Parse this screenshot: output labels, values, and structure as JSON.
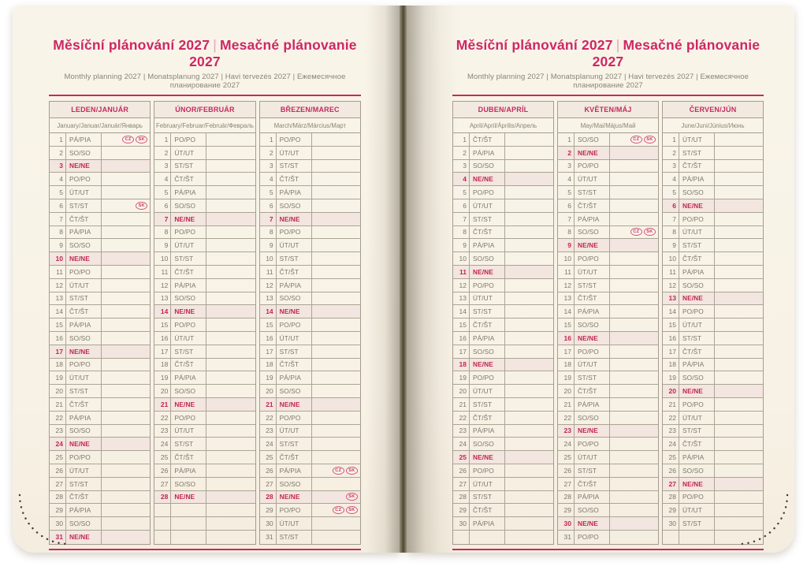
{
  "page_header": {
    "title_czech": "Měsíční plánování 2027",
    "title_divider": "|",
    "title_slovak": "Mesačné plánovanie 2027",
    "subtitle": "Monthly planning 2027 | Monatsplanung 2027 | Havi tervezés 2027 | Ежемесячное планирование 2027"
  },
  "colors": {
    "accent_pink": "#c8285e",
    "title_magenta": "#ce2765",
    "sunday_red": "#c02750",
    "badge_red": "#c73560",
    "paper_cream": "#f8f2e6",
    "grid_gray": "#aba595",
    "text_gray": "#7c766b",
    "month_header_bg": "#f2e9e0",
    "sunday_row_bg": "#f3e5df"
  },
  "holiday_badges_legend": [
    "CZ",
    "SK"
  ],
  "left_page": {
    "months": [
      {
        "name": "LEDEN/JANUÁR",
        "languages": "January/Januar/Január/Январь",
        "days": [
          {
            "n": 1,
            "d": "PÁ/PIA",
            "b": [
              "CZ",
              "SK"
            ]
          },
          {
            "n": 2,
            "d": "SO/SO"
          },
          {
            "n": 3,
            "d": "NE/NE"
          },
          {
            "n": 4,
            "d": "PO/PO"
          },
          {
            "n": 5,
            "d": "ÚT/UT"
          },
          {
            "n": 6,
            "d": "ST/ST",
            "b": [
              "SK"
            ]
          },
          {
            "n": 7,
            "d": "ČT/ŠT"
          },
          {
            "n": 8,
            "d": "PÁ/PIA"
          },
          {
            "n": 9,
            "d": "SO/SO"
          },
          {
            "n": 10,
            "d": "NE/NE"
          },
          {
            "n": 11,
            "d": "PO/PO"
          },
          {
            "n": 12,
            "d": "ÚT/UT"
          },
          {
            "n": 13,
            "d": "ST/ST"
          },
          {
            "n": 14,
            "d": "ČT/ŠT"
          },
          {
            "n": 15,
            "d": "PÁ/PIA"
          },
          {
            "n": 16,
            "d": "SO/SO"
          },
          {
            "n": 17,
            "d": "NE/NE"
          },
          {
            "n": 18,
            "d": "PO/PO"
          },
          {
            "n": 19,
            "d": "ÚT/UT"
          },
          {
            "n": 20,
            "d": "ST/ST"
          },
          {
            "n": 21,
            "d": "ČT/ŠT"
          },
          {
            "n": 22,
            "d": "PÁ/PIA"
          },
          {
            "n": 23,
            "d": "SO/SO"
          },
          {
            "n": 24,
            "d": "NE/NE"
          },
          {
            "n": 25,
            "d": "PO/PO"
          },
          {
            "n": 26,
            "d": "ÚT/UT"
          },
          {
            "n": 27,
            "d": "ST/ST"
          },
          {
            "n": 28,
            "d": "ČT/ŠT"
          },
          {
            "n": 29,
            "d": "PÁ/PIA"
          },
          {
            "n": 30,
            "d": "SO/SO"
          },
          {
            "n": 31,
            "d": "NE/NE"
          }
        ]
      },
      {
        "name": "ÚNOR/FEBRUÁR",
        "languages": "February/Februar/Február/Февраль",
        "days": [
          {
            "n": 1,
            "d": "PO/PO"
          },
          {
            "n": 2,
            "d": "ÚT/UT"
          },
          {
            "n": 3,
            "d": "ST/ST"
          },
          {
            "n": 4,
            "d": "ČT/ŠT"
          },
          {
            "n": 5,
            "d": "PÁ/PIA"
          },
          {
            "n": 6,
            "d": "SO/SO"
          },
          {
            "n": 7,
            "d": "NE/NE"
          },
          {
            "n": 8,
            "d": "PO/PO"
          },
          {
            "n": 9,
            "d": "ÚT/UT"
          },
          {
            "n": 10,
            "d": "ST/ST"
          },
          {
            "n": 11,
            "d": "ČT/ŠT"
          },
          {
            "n": 12,
            "d": "PÁ/PIA"
          },
          {
            "n": 13,
            "d": "SO/SO"
          },
          {
            "n": 14,
            "d": "NE/NE"
          },
          {
            "n": 15,
            "d": "PO/PO"
          },
          {
            "n": 16,
            "d": "ÚT/UT"
          },
          {
            "n": 17,
            "d": "ST/ST"
          },
          {
            "n": 18,
            "d": "ČT/ŠT"
          },
          {
            "n": 19,
            "d": "PÁ/PIA"
          },
          {
            "n": 20,
            "d": "SO/SO"
          },
          {
            "n": 21,
            "d": "NE/NE"
          },
          {
            "n": 22,
            "d": "PO/PO"
          },
          {
            "n": 23,
            "d": "ÚT/UT"
          },
          {
            "n": 24,
            "d": "ST/ST"
          },
          {
            "n": 25,
            "d": "ČT/ŠT"
          },
          {
            "n": 26,
            "d": "PÁ/PIA"
          },
          {
            "n": 27,
            "d": "SO/SO"
          },
          {
            "n": 28,
            "d": "NE/NE"
          }
        ]
      },
      {
        "name": "BŘEZEN/MAREC",
        "languages": "March/März/Március/Март",
        "days": [
          {
            "n": 1,
            "d": "PO/PO"
          },
          {
            "n": 2,
            "d": "ÚT/UT"
          },
          {
            "n": 3,
            "d": "ST/ST"
          },
          {
            "n": 4,
            "d": "ČT/ŠT"
          },
          {
            "n": 5,
            "d": "PÁ/PIA"
          },
          {
            "n": 6,
            "d": "SO/SO"
          },
          {
            "n": 7,
            "d": "NE/NE"
          },
          {
            "n": 8,
            "d": "PO/PO"
          },
          {
            "n": 9,
            "d": "ÚT/UT"
          },
          {
            "n": 10,
            "d": "ST/ST"
          },
          {
            "n": 11,
            "d": "ČT/ŠT"
          },
          {
            "n": 12,
            "d": "PÁ/PIA"
          },
          {
            "n": 13,
            "d": "SO/SO"
          },
          {
            "n": 14,
            "d": "NE/NE"
          },
          {
            "n": 15,
            "d": "PO/PO"
          },
          {
            "n": 16,
            "d": "ÚT/UT"
          },
          {
            "n": 17,
            "d": "ST/ST"
          },
          {
            "n": 18,
            "d": "ČT/ŠT"
          },
          {
            "n": 19,
            "d": "PÁ/PIA"
          },
          {
            "n": 20,
            "d": "SO/SO"
          },
          {
            "n": 21,
            "d": "NE/NE"
          },
          {
            "n": 22,
            "d": "PO/PO"
          },
          {
            "n": 23,
            "d": "ÚT/UT"
          },
          {
            "n": 24,
            "d": "ST/ST"
          },
          {
            "n": 25,
            "d": "ČT/ŠT"
          },
          {
            "n": 26,
            "d": "PÁ/PIA",
            "b": [
              "CZ",
              "SK"
            ]
          },
          {
            "n": 27,
            "d": "SO/SO"
          },
          {
            "n": 28,
            "d": "NE/NE",
            "b": [
              "SK"
            ]
          },
          {
            "n": 29,
            "d": "PO/PO",
            "b": [
              "CZ",
              "SK"
            ]
          },
          {
            "n": 30,
            "d": "ÚT/UT"
          },
          {
            "n": 31,
            "d": "ST/ST"
          }
        ]
      }
    ]
  },
  "right_page": {
    "months": [
      {
        "name": "DUBEN/APRÍL",
        "languages": "April/April/Április/Апрель",
        "days": [
          {
            "n": 1,
            "d": "ČT/ŠT"
          },
          {
            "n": 2,
            "d": "PÁ/PIA"
          },
          {
            "n": 3,
            "d": "SO/SO"
          },
          {
            "n": 4,
            "d": "NE/NE"
          },
          {
            "n": 5,
            "d": "PO/PO"
          },
          {
            "n": 6,
            "d": "ÚT/UT"
          },
          {
            "n": 7,
            "d": "ST/ST"
          },
          {
            "n": 8,
            "d": "ČT/ŠT"
          },
          {
            "n": 9,
            "d": "PÁ/PIA"
          },
          {
            "n": 10,
            "d": "SO/SO"
          },
          {
            "n": 11,
            "d": "NE/NE"
          },
          {
            "n": 12,
            "d": "PO/PO"
          },
          {
            "n": 13,
            "d": "ÚT/UT"
          },
          {
            "n": 14,
            "d": "ST/ST"
          },
          {
            "n": 15,
            "d": "ČT/ŠT"
          },
          {
            "n": 16,
            "d": "PÁ/PIA"
          },
          {
            "n": 17,
            "d": "SO/SO"
          },
          {
            "n": 18,
            "d": "NE/NE"
          },
          {
            "n": 19,
            "d": "PO/PO"
          },
          {
            "n": 20,
            "d": "ÚT/UT"
          },
          {
            "n": 21,
            "d": "ST/ST"
          },
          {
            "n": 22,
            "d": "ČT/ŠT"
          },
          {
            "n": 23,
            "d": "PÁ/PIA"
          },
          {
            "n": 24,
            "d": "SO/SO"
          },
          {
            "n": 25,
            "d": "NE/NE"
          },
          {
            "n": 26,
            "d": "PO/PO"
          },
          {
            "n": 27,
            "d": "ÚT/UT"
          },
          {
            "n": 28,
            "d": "ST/ST"
          },
          {
            "n": 29,
            "d": "ČT/ŠT"
          },
          {
            "n": 30,
            "d": "PÁ/PIA"
          }
        ]
      },
      {
        "name": "KVĚTEN/MÁJ",
        "languages": "May/Mai/Május/Май",
        "days": [
          {
            "n": 1,
            "d": "SO/SO",
            "b": [
              "CZ",
              "SK"
            ]
          },
          {
            "n": 2,
            "d": "NE/NE"
          },
          {
            "n": 3,
            "d": "PO/PO"
          },
          {
            "n": 4,
            "d": "ÚT/UT"
          },
          {
            "n": 5,
            "d": "ST/ST"
          },
          {
            "n": 6,
            "d": "ČT/ŠT"
          },
          {
            "n": 7,
            "d": "PÁ/PIA"
          },
          {
            "n": 8,
            "d": "SO/SO",
            "b": [
              "CZ",
              "SK"
            ]
          },
          {
            "n": 9,
            "d": "NE/NE"
          },
          {
            "n": 10,
            "d": "PO/PO"
          },
          {
            "n": 11,
            "d": "ÚT/UT"
          },
          {
            "n": 12,
            "d": "ST/ST"
          },
          {
            "n": 13,
            "d": "ČT/ŠT"
          },
          {
            "n": 14,
            "d": "PÁ/PIA"
          },
          {
            "n": 15,
            "d": "SO/SO"
          },
          {
            "n": 16,
            "d": "NE/NE"
          },
          {
            "n": 17,
            "d": "PO/PO"
          },
          {
            "n": 18,
            "d": "ÚT/UT"
          },
          {
            "n": 19,
            "d": "ST/ST"
          },
          {
            "n": 20,
            "d": "ČT/ŠT"
          },
          {
            "n": 21,
            "d": "PÁ/PIA"
          },
          {
            "n": 22,
            "d": "SO/SO"
          },
          {
            "n": 23,
            "d": "NE/NE"
          },
          {
            "n": 24,
            "d": "PO/PO"
          },
          {
            "n": 25,
            "d": "ÚT/UT"
          },
          {
            "n": 26,
            "d": "ST/ST"
          },
          {
            "n": 27,
            "d": "ČT/ŠT"
          },
          {
            "n": 28,
            "d": "PÁ/PIA"
          },
          {
            "n": 29,
            "d": "SO/SO"
          },
          {
            "n": 30,
            "d": "NE/NE"
          },
          {
            "n": 31,
            "d": "PO/PO"
          }
        ]
      },
      {
        "name": "ČERVEN/JÚN",
        "languages": "June/Juni/Június/Июнь",
        "days": [
          {
            "n": 1,
            "d": "ÚT/UT"
          },
          {
            "n": 2,
            "d": "ST/ST"
          },
          {
            "n": 3,
            "d": "ČT/ŠT"
          },
          {
            "n": 4,
            "d": "PÁ/PIA"
          },
          {
            "n": 5,
            "d": "SO/SO"
          },
          {
            "n": 6,
            "d": "NE/NE"
          },
          {
            "n": 7,
            "d": "PO/PO"
          },
          {
            "n": 8,
            "d": "ÚT/UT"
          },
          {
            "n": 9,
            "d": "ST/ST"
          },
          {
            "n": 10,
            "d": "ČT/ŠT"
          },
          {
            "n": 11,
            "d": "PÁ/PIA"
          },
          {
            "n": 12,
            "d": "SO/SO"
          },
          {
            "n": 13,
            "d": "NE/NE"
          },
          {
            "n": 14,
            "d": "PO/PO"
          },
          {
            "n": 15,
            "d": "ÚT/UT"
          },
          {
            "n": 16,
            "d": "ST/ST"
          },
          {
            "n": 17,
            "d": "ČT/ŠT"
          },
          {
            "n": 18,
            "d": "PÁ/PIA"
          },
          {
            "n": 19,
            "d": "SO/SO"
          },
          {
            "n": 20,
            "d": "NE/NE"
          },
          {
            "n": 21,
            "d": "PO/PO"
          },
          {
            "n": 22,
            "d": "ÚT/UT"
          },
          {
            "n": 23,
            "d": "ST/ST"
          },
          {
            "n": 24,
            "d": "ČT/ŠT"
          },
          {
            "n": 25,
            "d": "PÁ/PIA"
          },
          {
            "n": 26,
            "d": "SO/SO"
          },
          {
            "n": 27,
            "d": "NE/NE"
          },
          {
            "n": 28,
            "d": "PO/PO"
          },
          {
            "n": 29,
            "d": "ÚT/UT"
          },
          {
            "n": 30,
            "d": "ST/ST"
          }
        ]
      }
    ]
  }
}
